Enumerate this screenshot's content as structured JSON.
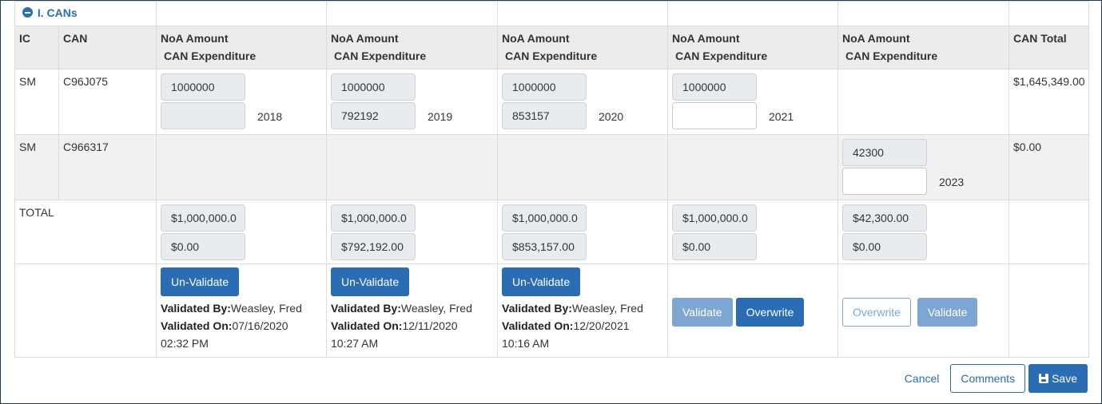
{
  "section": {
    "title": "I. CANs",
    "toggle_icon": "minus-circle-icon"
  },
  "headers": {
    "ic": "IC",
    "can": "CAN",
    "noa_amount": "NoA Amount",
    "can_expenditure": "CAN Expenditure",
    "can_total": "CAN Total"
  },
  "rows": [
    {
      "ic": "SM",
      "can": "C96J075",
      "years": [
        {
          "noa": "1000000",
          "expenditure": "",
          "year": "2018"
        },
        {
          "noa": "1000000",
          "expenditure": "792192",
          "year": "2019"
        },
        {
          "noa": "1000000",
          "expenditure": "853157",
          "year": "2020"
        },
        {
          "noa": "1000000",
          "expenditure": "",
          "year": "2021"
        }
      ],
      "total": "$1,645,349.00"
    },
    {
      "ic": "SM",
      "can": "C966317",
      "years": [
        {
          "noa": "42300",
          "expenditure": "",
          "year": "2023"
        }
      ],
      "total": "$0.00"
    }
  ],
  "totals": {
    "label": "TOTAL",
    "columns": [
      {
        "noa": "$1,000,000.0",
        "expenditure": "$0.00"
      },
      {
        "noa": "$1,000,000.0",
        "expenditure": "$792,192.00"
      },
      {
        "noa": "$1,000,000.0",
        "expenditure": "$853,157.00"
      },
      {
        "noa": "$1,000,000.0",
        "expenditure": "$0.00"
      },
      {
        "noa": "$42,300.00",
        "expenditure": "$0.00"
      }
    ]
  },
  "validation": {
    "unvalidate_label": "Un-Validate",
    "validate_label": "Validate",
    "overwrite_label": "Overwrite",
    "validated_by_label": "Validated By:",
    "validated_on_label": "Validated On:",
    "columns": [
      {
        "validated_by": "Weasley, Fred",
        "validated_on": "07/16/2020",
        "time": "02:32 PM"
      },
      {
        "validated_by": "Weasley, Fred",
        "validated_on": "12/11/2020",
        "time": "10:27 AM"
      },
      {
        "validated_by": "Weasley, Fred",
        "validated_on": "12/20/2021",
        "time": "10:16 AM"
      }
    ]
  },
  "footer": {
    "cancel_label": "Cancel",
    "comments_label": "Comments",
    "save_label": "Save",
    "save_icon": "floppy-disk-icon"
  },
  "colors": {
    "primary": "#2a6db5",
    "muted_button": "#7ea6d2",
    "header_bg": "#ececec",
    "input_disabled_bg": "#e9ecef"
  }
}
